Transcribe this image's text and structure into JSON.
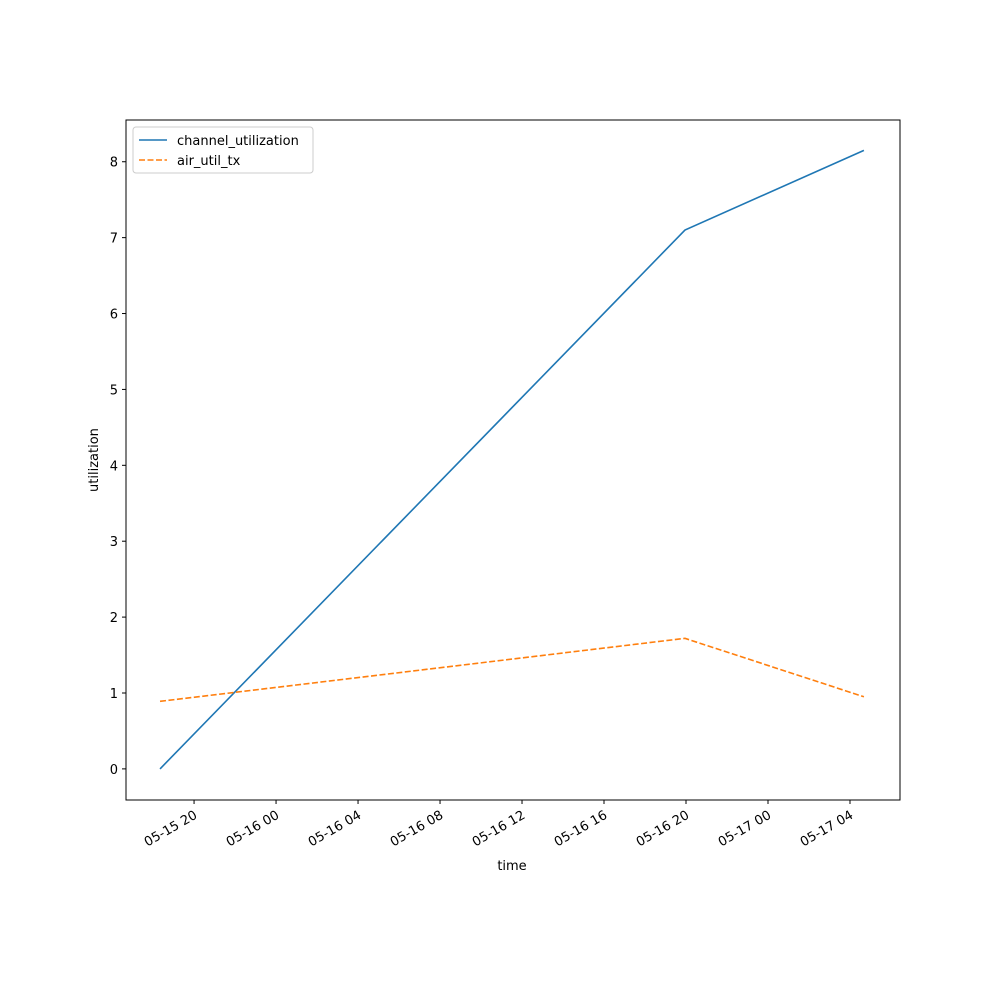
{
  "chart_data": {
    "type": "line",
    "x_label": "time",
    "y_label": "utilization",
    "x": [
      18.34,
      43.95,
      52.68
    ],
    "series": [
      {
        "name": "channel_utilization",
        "color": "#1f77b4",
        "linestyle": "solid",
        "values": [
          0,
          7.1,
          8.15
        ]
      },
      {
        "name": "air_util_tx",
        "color": "#ff7f0e",
        "linestyle": "dashed",
        "values": [
          0.89,
          1.72,
          0.95
        ]
      }
    ],
    "xlim": [
      16.68,
      54.44
    ],
    "xticks": [
      {
        "value": 20,
        "label": "05-15 20"
      },
      {
        "value": 24,
        "label": "05-16 00"
      },
      {
        "value": 28,
        "label": "05-16 04"
      },
      {
        "value": 32,
        "label": "05-16 08"
      },
      {
        "value": 36,
        "label": "05-16 12"
      },
      {
        "value": 40,
        "label": "05-16 16"
      },
      {
        "value": 44,
        "label": "05-16 20"
      },
      {
        "value": 48,
        "label": "05-17 00"
      },
      {
        "value": 52,
        "label": "05-17 04"
      }
    ],
    "ylim": [
      -0.41,
      8.55
    ],
    "yticks": [
      0,
      1,
      2,
      3,
      4,
      5,
      6,
      7,
      8
    ],
    "grid": false,
    "legend": "upper left"
  }
}
